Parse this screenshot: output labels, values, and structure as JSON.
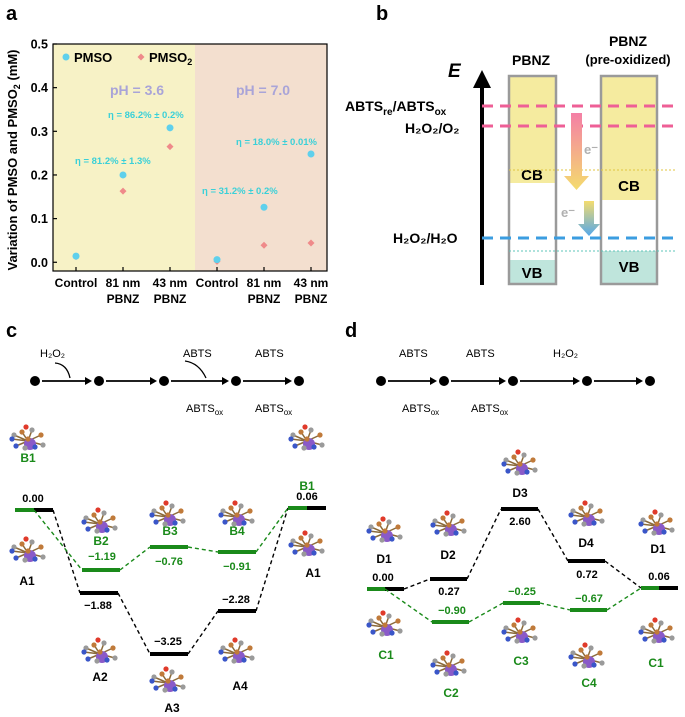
{
  "panels": {
    "a": "a",
    "b": "b",
    "c": "c",
    "d": "d"
  },
  "panel_a": {
    "ylabel_pre": "Variation of PMSO and PMSO",
    "ylabel_sub": "2",
    "ylabel_post": " (mM)",
    "legend": [
      {
        "label": "PMSO",
        "color": "#5fd0ec"
      },
      {
        "label": "PMSO",
        "sub": "2",
        "color": "#ef8a8a"
      }
    ],
    "regions": [
      {
        "label": "pH = 3.6",
        "color": "#f7f2c6"
      },
      {
        "label": "pH = 7.0",
        "color": "#f3dfcf"
      }
    ],
    "annotations": [
      "η = 86.2% ± 0.2%",
      "η = 81.2% ± 1.3%",
      "η = 18.0% ± 0.01%",
      "η = 31.2% ± 0.2%"
    ]
  },
  "chart_data": {
    "type": "scatter",
    "categories": [
      [
        "Control"
      ],
      [
        "81 nm",
        "PBNZ"
      ],
      [
        "43 nm",
        "PBNZ"
      ],
      [
        "Control"
      ],
      [
        "81 nm",
        "PBNZ"
      ],
      [
        "43 nm",
        "PBNZ"
      ]
    ],
    "series": [
      {
        "name": "PMSO",
        "values": [
          0.014,
          0.2,
          0.308,
          0.006,
          0.126,
          0.248
        ]
      },
      {
        "name": "PMSO2",
        "values": [
          0.013,
          0.163,
          0.265,
          0.002,
          0.039,
          0.044
        ]
      }
    ],
    "ylim": [
      -0.02,
      0.5
    ],
    "yticks": [
      "0.0",
      "0.1",
      "0.2",
      "0.3",
      "0.4",
      "0.5"
    ],
    "ytick_values": [
      0,
      0.1,
      0.2,
      0.3,
      0.4,
      0.5
    ]
  },
  "panel_b": {
    "e_label": "E",
    "col1": "PBNZ",
    "col2_line1": "PBNZ",
    "col2_line2": "(pre-oxidized)",
    "abts_left": "ABTS",
    "abts_sub1": "re",
    "abts_mid": "/ABTS",
    "abts_sub2": "ox",
    "h2o2o2": "H₂O₂/O₂",
    "h2o2h2o": "H₂O₂/H₂O",
    "cb": "CB",
    "vb": "VB",
    "e_minus": "e⁻"
  },
  "panel_c": {
    "scheme": {
      "h2o2": "H₂O₂",
      "abts": "ABTS",
      "abts_ox": "ABTS",
      "ox": "ox"
    },
    "energies": [
      "0.00",
      "−1.88",
      "−3.25",
      "−2.28",
      "0.06",
      "−1.19",
      "−0.76",
      "−0.91"
    ],
    "labels": [
      "A1",
      "A2",
      "A3",
      "A4",
      "A1",
      "B1",
      "B2",
      "B3",
      "B4",
      "B1"
    ]
  },
  "panel_d": {
    "energies": [
      "0.00",
      "0.27",
      "2.60",
      "0.72",
      "0.06",
      "−0.90",
      "−0.25",
      "−0.67"
    ],
    "labels": [
      "D1",
      "D2",
      "D3",
      "D4",
      "D1",
      "C1",
      "C2",
      "C3",
      "C4",
      "C1"
    ]
  },
  "colors": {
    "green": "#1a8a1a",
    "black": "#000000",
    "cyan": "#3ad0d8",
    "pink": "#ee5f96",
    "blue": "#3b9de0",
    "gray_box": "#9a9a9a"
  }
}
